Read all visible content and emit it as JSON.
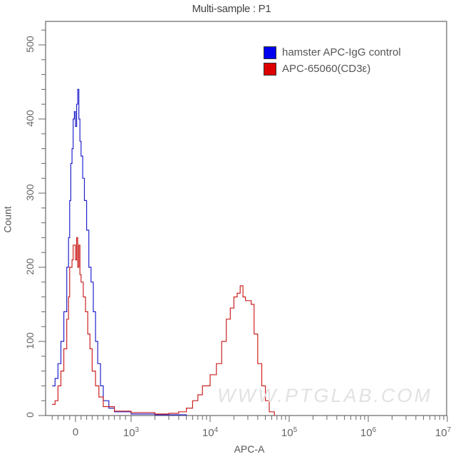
{
  "chart_data": {
    "type": "histogram",
    "title": "Multi-sample : P1",
    "xlabel": "APC-A",
    "ylabel": "Count",
    "x_scale": "biexponential (log)",
    "x_ticks": [
      "0",
      "10^3",
      "10^4",
      "10^5",
      "10^6",
      "10^7"
    ],
    "y_ticks": [
      0,
      100,
      200,
      300,
      400,
      500
    ],
    "ylim": [
      0,
      540
    ],
    "legend_position": "upper right",
    "series": [
      {
        "name": "hamster APC-IgG control",
        "color": "#0000ee",
        "peak_position": "~0 to 100",
        "peak_count": 440,
        "points": [
          [
            -400,
            40
          ],
          [
            -350,
            50
          ],
          [
            -300,
            70
          ],
          [
            -250,
            100
          ],
          [
            -200,
            140
          ],
          [
            -150,
            200
          ],
          [
            -120,
            240
          ],
          [
            -100,
            290
          ],
          [
            -80,
            340
          ],
          [
            -60,
            360
          ],
          [
            -40,
            400
          ],
          [
            -20,
            410
          ],
          [
            0,
            390
          ],
          [
            20,
            420
          ],
          [
            40,
            440
          ],
          [
            60,
            400
          ],
          [
            80,
            370
          ],
          [
            100,
            350
          ],
          [
            130,
            320
          ],
          [
            160,
            290
          ],
          [
            200,
            250
          ],
          [
            240,
            200
          ],
          [
            280,
            180
          ],
          [
            320,
            140
          ],
          [
            360,
            100
          ],
          [
            400,
            70
          ],
          [
            450,
            40
          ],
          [
            500,
            20
          ],
          [
            600,
            10
          ],
          [
            700,
            5
          ],
          [
            1000,
            2
          ],
          [
            2000,
            1
          ],
          [
            5000,
            0
          ]
        ]
      },
      {
        "name": "APC-65060(CD3ε)",
        "color": "#dd0000",
        "peak_position": "~0 to 100 and ~2.5x10^4",
        "peak_count": 245,
        "points": [
          [
            -400,
            15
          ],
          [
            -350,
            20
          ],
          [
            -300,
            40
          ],
          [
            -250,
            60
          ],
          [
            -200,
            90
          ],
          [
            -150,
            130
          ],
          [
            -120,
            160
          ],
          [
            -100,
            200
          ],
          [
            -80,
            200
          ],
          [
            -60,
            210
          ],
          [
            -40,
            230
          ],
          [
            -20,
            230
          ],
          [
            0,
            210
          ],
          [
            20,
            240
          ],
          [
            40,
            200
          ],
          [
            60,
            230
          ],
          [
            80,
            190
          ],
          [
            100,
            180
          ],
          [
            140,
            160
          ],
          [
            180,
            140
          ],
          [
            220,
            110
          ],
          [
            260,
            90
          ],
          [
            300,
            60
          ],
          [
            360,
            40
          ],
          [
            420,
            25
          ],
          [
            500,
            12
          ],
          [
            700,
            6
          ],
          [
            1000,
            4
          ],
          [
            2000,
            2
          ],
          [
            3000,
            3
          ],
          [
            4000,
            5
          ],
          [
            5000,
            10
          ],
          [
            6000,
            20
          ],
          [
            7000,
            28
          ],
          [
            8000,
            40
          ],
          [
            10000,
            55
          ],
          [
            12000,
            70
          ],
          [
            14000,
            100
          ],
          [
            16000,
            130
          ],
          [
            18000,
            145
          ],
          [
            20000,
            160
          ],
          [
            22000,
            165
          ],
          [
            24000,
            175
          ],
          [
            26000,
            160
          ],
          [
            28000,
            155
          ],
          [
            30000,
            155
          ],
          [
            33000,
            150
          ],
          [
            36000,
            110
          ],
          [
            40000,
            70
          ],
          [
            45000,
            40
          ],
          [
            50000,
            20
          ],
          [
            56000,
            5
          ],
          [
            65000,
            0
          ]
        ]
      }
    ]
  },
  "header": {
    "title": "Multi-sample : P1"
  },
  "axes": {
    "xlabel": "APC-A",
    "ylabel": "Count",
    "y_tick_labels": [
      "0",
      "100",
      "200",
      "300",
      "400",
      "500"
    ],
    "x_tick_labels": [
      {
        "base": "0",
        "exp": ""
      },
      {
        "base": "10",
        "exp": "3"
      },
      {
        "base": "10",
        "exp": "4"
      },
      {
        "base": "10",
        "exp": "5"
      },
      {
        "base": "10",
        "exp": "6"
      },
      {
        "base": "10",
        "exp": "7"
      }
    ]
  },
  "legend": {
    "items": [
      {
        "label": "hamster APC-IgG control",
        "color": "#0000ee"
      },
      {
        "label": "APC-65060(CD3ε)",
        "color": "#dd0000"
      }
    ]
  },
  "watermark": "WWW.PTGLAB.COM"
}
